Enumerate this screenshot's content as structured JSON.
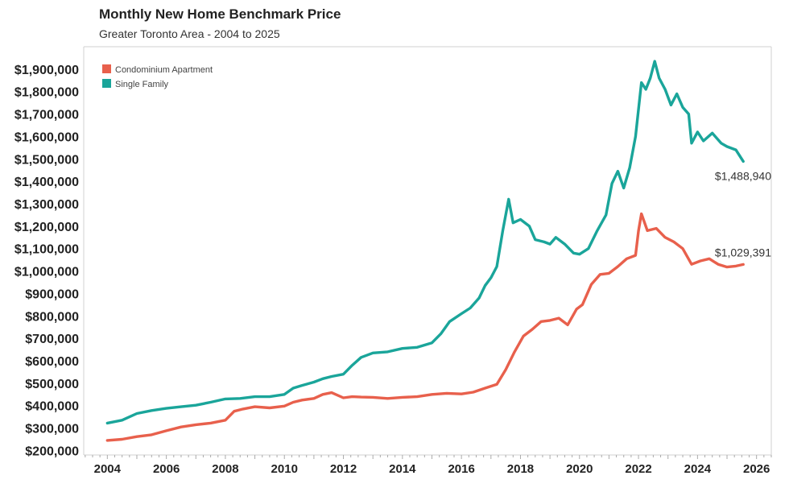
{
  "chart_data": {
    "type": "line",
    "title": "Monthly New Home Benchmark Price",
    "subtitle": "Greater Toronto Area - 2004 to 2025",
    "xlabel": "",
    "ylabel": "",
    "xlim": [
      2003.2,
      2026.5
    ],
    "ylim": [
      180000,
      2000000
    ],
    "y_ticks": [
      200000,
      300000,
      400000,
      500000,
      600000,
      700000,
      800000,
      900000,
      1000000,
      1100000,
      1200000,
      1300000,
      1400000,
      1500000,
      1600000,
      1700000,
      1800000,
      1900000
    ],
    "y_tick_labels": [
      "$200,000",
      "$300,000",
      "$400,000",
      "$500,000",
      "$600,000",
      "$700,000",
      "$800,000",
      "$900,000",
      "$1,000,000",
      "$1,100,000",
      "$1,200,000",
      "$1,300,000",
      "$1,400,000",
      "$1,500,000",
      "$1,600,000",
      "$1,700,000",
      "$1,800,000",
      "$1,900,000"
    ],
    "x_ticks": [
      2004,
      2006,
      2008,
      2010,
      2012,
      2014,
      2016,
      2018,
      2020,
      2022,
      2024,
      2026
    ],
    "x_tick_labels": [
      "2004",
      "2006",
      "2008",
      "2010",
      "2012",
      "2014",
      "2016",
      "2018",
      "2020",
      "2022",
      "2024",
      "2026"
    ],
    "grid": false,
    "legend_position": "top-left",
    "series": [
      {
        "name": "Condominium Apartment",
        "color": "#e8604c",
        "end_label": "$1,029,391",
        "points": [
          [
            2004.0,
            245000
          ],
          [
            2004.5,
            250000
          ],
          [
            2005.0,
            262000
          ],
          [
            2005.5,
            270000
          ],
          [
            2006.0,
            288000
          ],
          [
            2006.5,
            305000
          ],
          [
            2007.0,
            315000
          ],
          [
            2007.5,
            322000
          ],
          [
            2008.0,
            335000
          ],
          [
            2008.3,
            375000
          ],
          [
            2008.6,
            385000
          ],
          [
            2009.0,
            395000
          ],
          [
            2009.5,
            390000
          ],
          [
            2010.0,
            398000
          ],
          [
            2010.3,
            415000
          ],
          [
            2010.6,
            425000
          ],
          [
            2011.0,
            432000
          ],
          [
            2011.3,
            450000
          ],
          [
            2011.6,
            458000
          ],
          [
            2012.0,
            435000
          ],
          [
            2012.3,
            440000
          ],
          [
            2012.6,
            438000
          ],
          [
            2013.0,
            437000
          ],
          [
            2013.5,
            432000
          ],
          [
            2014.0,
            437000
          ],
          [
            2014.5,
            440000
          ],
          [
            2015.0,
            450000
          ],
          [
            2015.5,
            455000
          ],
          [
            2016.0,
            452000
          ],
          [
            2016.4,
            460000
          ],
          [
            2016.8,
            478000
          ],
          [
            2017.2,
            495000
          ],
          [
            2017.5,
            560000
          ],
          [
            2017.8,
            640000
          ],
          [
            2018.1,
            710000
          ],
          [
            2018.4,
            740000
          ],
          [
            2018.7,
            775000
          ],
          [
            2019.0,
            780000
          ],
          [
            2019.3,
            790000
          ],
          [
            2019.6,
            760000
          ],
          [
            2019.9,
            830000
          ],
          [
            2020.1,
            850000
          ],
          [
            2020.4,
            940000
          ],
          [
            2020.7,
            985000
          ],
          [
            2021.0,
            990000
          ],
          [
            2021.3,
            1020000
          ],
          [
            2021.6,
            1055000
          ],
          [
            2021.9,
            1070000
          ],
          [
            2022.0,
            1180000
          ],
          [
            2022.1,
            1255000
          ],
          [
            2022.3,
            1180000
          ],
          [
            2022.6,
            1190000
          ],
          [
            2022.9,
            1150000
          ],
          [
            2023.2,
            1130000
          ],
          [
            2023.5,
            1100000
          ],
          [
            2023.8,
            1030000
          ],
          [
            2024.1,
            1045000
          ],
          [
            2024.4,
            1055000
          ],
          [
            2024.7,
            1030000
          ],
          [
            2025.0,
            1018000
          ],
          [
            2025.3,
            1022000
          ],
          [
            2025.55,
            1029391
          ]
        ]
      },
      {
        "name": "Single Family",
        "color": "#1aa59a",
        "end_label": "$1,488,940",
        "points": [
          [
            2004.0,
            322000
          ],
          [
            2004.5,
            335000
          ],
          [
            2005.0,
            365000
          ],
          [
            2005.5,
            378000
          ],
          [
            2006.0,
            388000
          ],
          [
            2006.5,
            395000
          ],
          [
            2007.0,
            402000
          ],
          [
            2007.5,
            415000
          ],
          [
            2008.0,
            430000
          ],
          [
            2008.5,
            432000
          ],
          [
            2009.0,
            440000
          ],
          [
            2009.5,
            440000
          ],
          [
            2010.0,
            450000
          ],
          [
            2010.3,
            478000
          ],
          [
            2010.6,
            490000
          ],
          [
            2011.0,
            505000
          ],
          [
            2011.3,
            520000
          ],
          [
            2011.6,
            530000
          ],
          [
            2012.0,
            540000
          ],
          [
            2012.3,
            580000
          ],
          [
            2012.6,
            615000
          ],
          [
            2013.0,
            635000
          ],
          [
            2013.5,
            640000
          ],
          [
            2014.0,
            655000
          ],
          [
            2014.5,
            660000
          ],
          [
            2015.0,
            680000
          ],
          [
            2015.3,
            720000
          ],
          [
            2015.6,
            775000
          ],
          [
            2016.0,
            810000
          ],
          [
            2016.3,
            835000
          ],
          [
            2016.6,
            880000
          ],
          [
            2016.8,
            935000
          ],
          [
            2017.0,
            970000
          ],
          [
            2017.2,
            1020000
          ],
          [
            2017.4,
            1180000
          ],
          [
            2017.6,
            1320000
          ],
          [
            2017.75,
            1215000
          ],
          [
            2018.0,
            1230000
          ],
          [
            2018.3,
            1200000
          ],
          [
            2018.5,
            1140000
          ],
          [
            2018.8,
            1130000
          ],
          [
            2019.0,
            1120000
          ],
          [
            2019.2,
            1150000
          ],
          [
            2019.5,
            1120000
          ],
          [
            2019.8,
            1080000
          ],
          [
            2020.0,
            1075000
          ],
          [
            2020.3,
            1100000
          ],
          [
            2020.6,
            1180000
          ],
          [
            2020.9,
            1250000
          ],
          [
            2021.1,
            1390000
          ],
          [
            2021.3,
            1445000
          ],
          [
            2021.5,
            1370000
          ],
          [
            2021.7,
            1460000
          ],
          [
            2021.9,
            1600000
          ],
          [
            2022.1,
            1840000
          ],
          [
            2022.25,
            1810000
          ],
          [
            2022.4,
            1860000
          ],
          [
            2022.55,
            1935000
          ],
          [
            2022.7,
            1860000
          ],
          [
            2022.9,
            1810000
          ],
          [
            2023.1,
            1740000
          ],
          [
            2023.3,
            1790000
          ],
          [
            2023.5,
            1730000
          ],
          [
            2023.7,
            1700000
          ],
          [
            2023.8,
            1570000
          ],
          [
            2024.0,
            1620000
          ],
          [
            2024.2,
            1580000
          ],
          [
            2024.5,
            1615000
          ],
          [
            2024.8,
            1570000
          ],
          [
            2025.0,
            1555000
          ],
          [
            2025.3,
            1540000
          ],
          [
            2025.55,
            1488940
          ]
        ]
      }
    ]
  }
}
